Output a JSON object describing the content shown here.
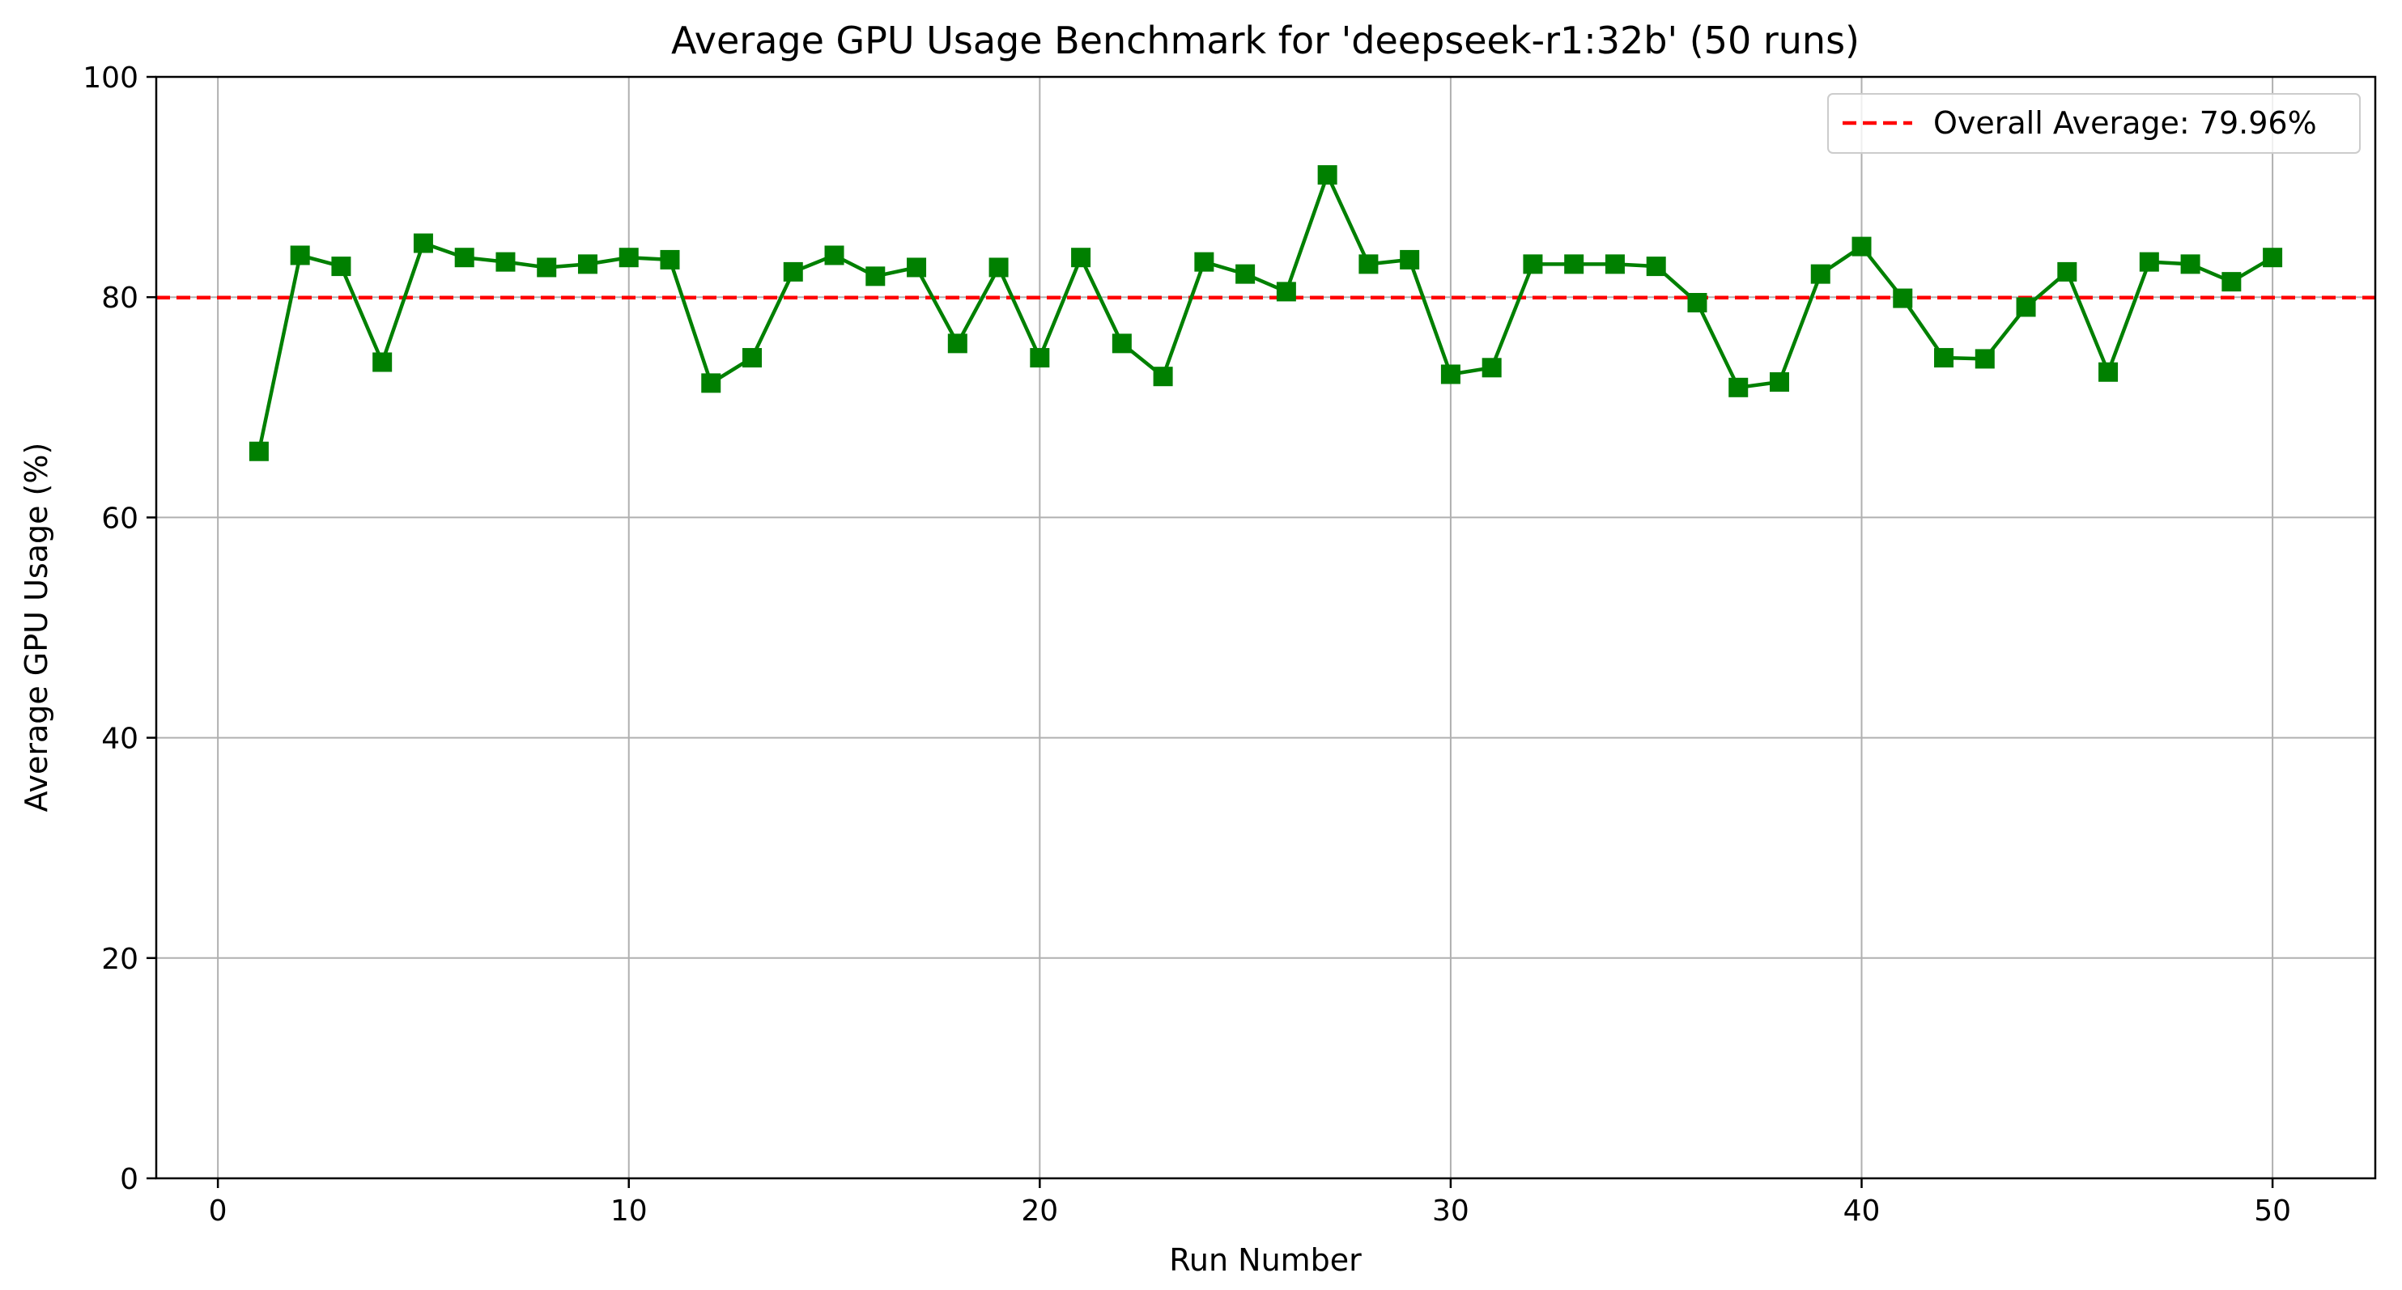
{
  "chart_data": {
    "type": "line",
    "title": "Average GPU Usage Benchmark for 'deepseek-r1:32b' (50 runs)",
    "xlabel": "Run Number",
    "ylabel": "Average GPU Usage (%)",
    "xlim": [
      -1.5,
      52.5
    ],
    "ylim": [
      0,
      100
    ],
    "xticks": [
      0,
      10,
      20,
      30,
      40,
      50
    ],
    "yticks": [
      0,
      20,
      40,
      60,
      80,
      100
    ],
    "grid": true,
    "legend_position": "top-right",
    "series": [
      {
        "name": "",
        "color": "#008000",
        "marker": "square",
        "x": [
          1,
          2,
          3,
          4,
          5,
          6,
          7,
          8,
          9,
          10,
          11,
          12,
          13,
          14,
          15,
          16,
          17,
          18,
          19,
          20,
          21,
          22,
          23,
          24,
          25,
          26,
          27,
          28,
          29,
          30,
          31,
          32,
          33,
          34,
          35,
          36,
          37,
          38,
          39,
          40,
          41,
          42,
          43,
          44,
          45,
          46,
          47,
          48,
          49,
          50
        ],
        "y": [
          66,
          83.8,
          82.8,
          74.1,
          84.9,
          83.6,
          83.2,
          82.7,
          83,
          83.6,
          83.4,
          72.2,
          74.5,
          82.3,
          83.8,
          81.9,
          82.7,
          75.8,
          82.7,
          74.5,
          83.6,
          75.8,
          72.8,
          83.2,
          82.1,
          80.5,
          91.1,
          83,
          83.4,
          73,
          73.6,
          83,
          83,
          83,
          82.8,
          79.5,
          71.8,
          72.3,
          82.1,
          84.6,
          79.9,
          74.5,
          74.4,
          79.1,
          82.3,
          73.2,
          83.2,
          83,
          81.4,
          83.6
        ]
      }
    ],
    "reference_lines": [
      {
        "label": "Overall Average: 79.96%",
        "value": 79.96,
        "color": "#ff0000",
        "style": "dashed"
      }
    ]
  }
}
